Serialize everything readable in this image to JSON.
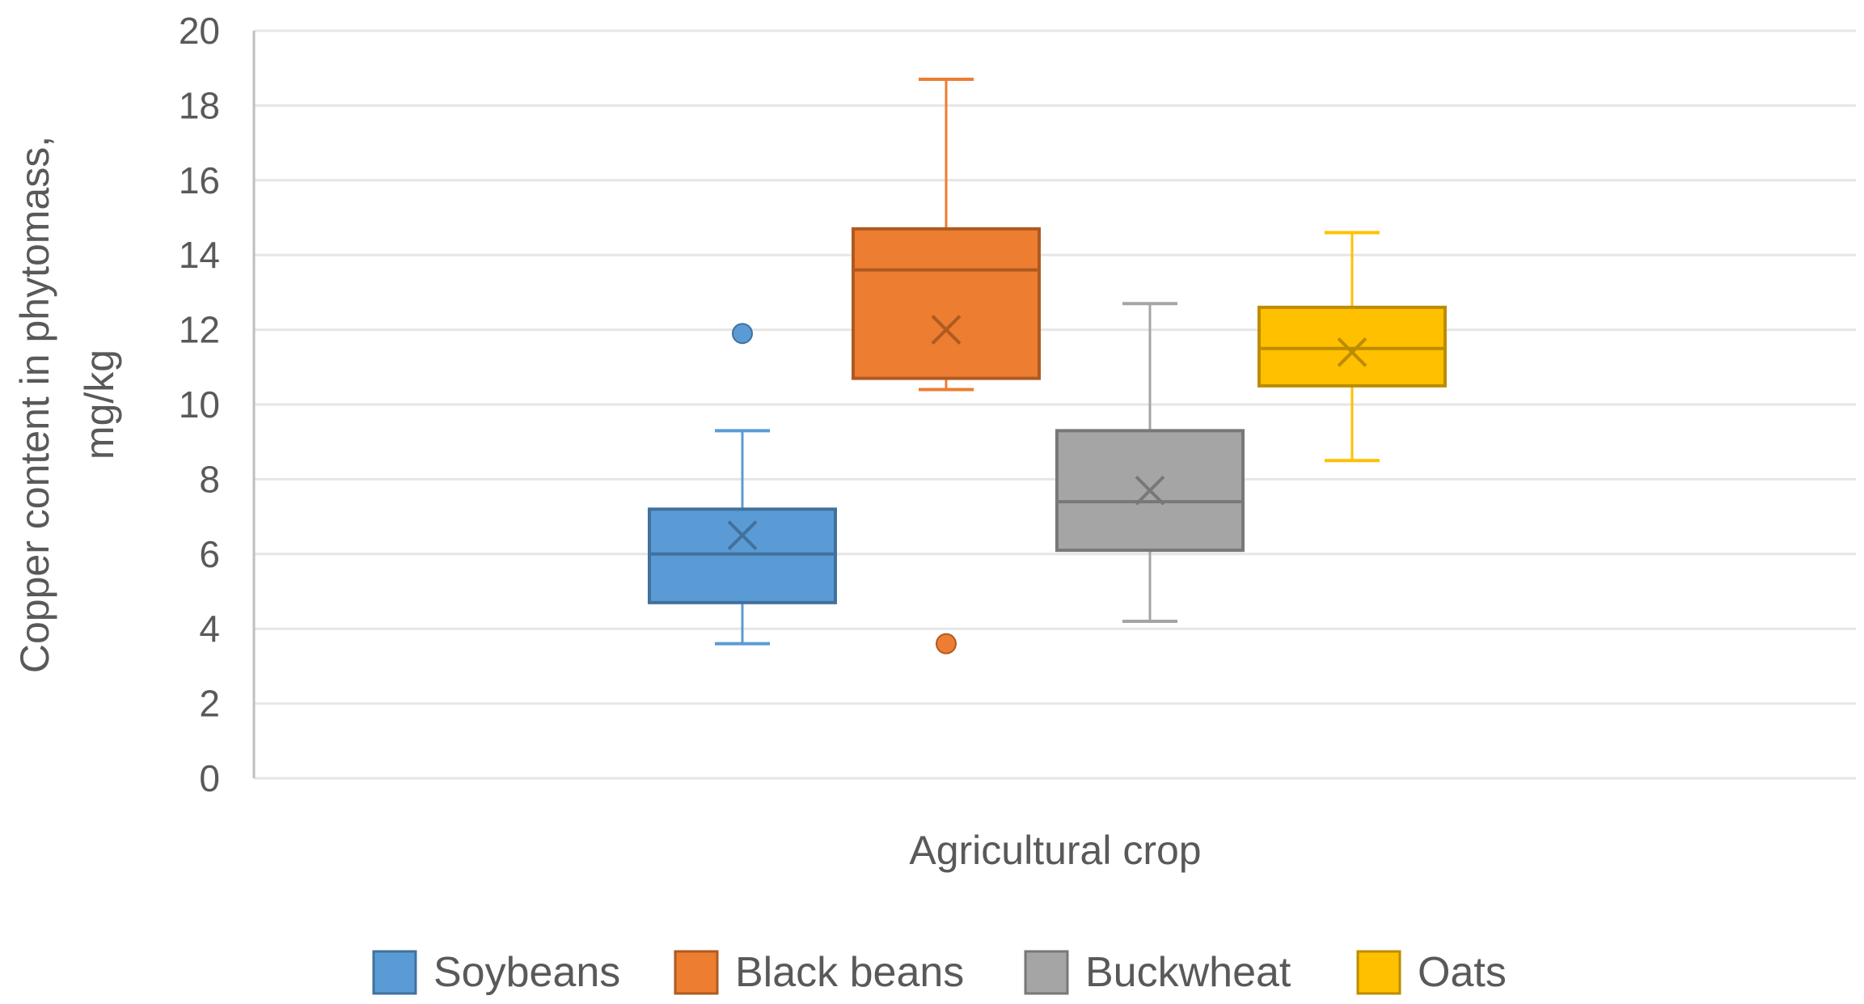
{
  "chart_data": {
    "type": "box",
    "xlabel": "Agricultural crop",
    "ylabel_lines": [
      "Copper content in phytomass,",
      "mg/kg"
    ],
    "ylim": [
      0,
      20
    ],
    "yticks": [
      "0",
      "2",
      "4",
      "6",
      "8",
      "10",
      "12",
      "14",
      "16",
      "18",
      "20"
    ],
    "grid": true,
    "legend_position": "bottom",
    "series": [
      {
        "name": "Soybeans",
        "color": "#5B9BD5",
        "whisker_low": 3.6,
        "q1": 4.7,
        "median": 6.0,
        "q3": 7.2,
        "whisker_high": 9.3,
        "mean": 6.5,
        "outliers": [
          11.9
        ]
      },
      {
        "name": "Black beans",
        "color": "#ED7D31",
        "whisker_low": 10.4,
        "q1": 10.7,
        "median": 13.6,
        "q3": 14.7,
        "whisker_high": 18.7,
        "mean": 12.0,
        "outliers": [
          3.6
        ]
      },
      {
        "name": "Buckwheat",
        "color": "#A5A5A5",
        "whisker_low": 4.2,
        "q1": 6.1,
        "median": 7.4,
        "q3": 9.3,
        "whisker_high": 12.7,
        "mean": 7.7,
        "outliers": []
      },
      {
        "name": "Oats",
        "color": "#FFC000",
        "whisker_low": 8.5,
        "q1": 10.5,
        "median": 11.5,
        "q3": 12.6,
        "whisker_high": 14.6,
        "mean": 11.4,
        "outliers": []
      }
    ]
  }
}
